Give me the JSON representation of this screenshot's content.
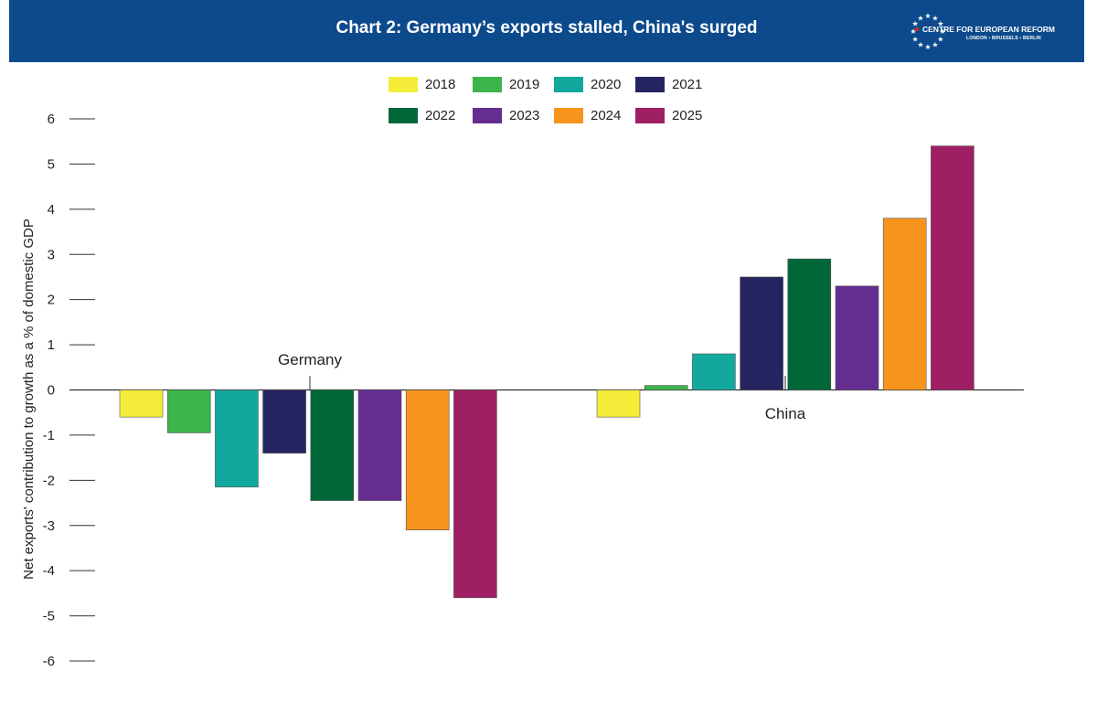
{
  "header": {
    "title": "Chart 2: Germany’s exports stalled, China's surged",
    "background": "#0d4a8c"
  },
  "logo": {
    "name": "CENTRE FOR EUROPEAN REFORM",
    "cities": "LONDON ▪ BRUSSELS ▪ BERLIN"
  },
  "chart_data": {
    "type": "bar",
    "title": "Chart 2: Germany’s exports stalled, China's surged",
    "xlabel": "",
    "ylabel": "Net exports' contribution to growth as a % of domestic GDP",
    "ylim": [
      -6,
      6
    ],
    "yticks": [
      6,
      5,
      4,
      3,
      2,
      1,
      0,
      -1,
      -2,
      -3,
      -4,
      -5,
      -6
    ],
    "grid": false,
    "legend_position": "top-center",
    "categories": [
      "Germany",
      "China"
    ],
    "series": [
      {
        "name": "2018",
        "color": "#f5ec3a",
        "values": [
          -0.6,
          -0.6
        ]
      },
      {
        "name": "2019",
        "color": "#3cb44b",
        "values": [
          -0.95,
          0.1
        ]
      },
      {
        "name": "2020",
        "color": "#13a89e",
        "values": [
          -2.15,
          0.8
        ]
      },
      {
        "name": "2021",
        "color": "#252460",
        "values": [
          -1.4,
          2.5
        ]
      },
      {
        "name": "2022",
        "color": "#006838",
        "values": [
          -2.45,
          2.9
        ]
      },
      {
        "name": "2023",
        "color": "#662d91",
        "values": [
          -2.45,
          2.3
        ]
      },
      {
        "name": "2024",
        "color": "#f7941d",
        "values": [
          -3.1,
          3.8
        ]
      },
      {
        "name": "2025",
        "color": "#9e1f63",
        "values": [
          -4.6,
          5.4
        ]
      }
    ]
  }
}
